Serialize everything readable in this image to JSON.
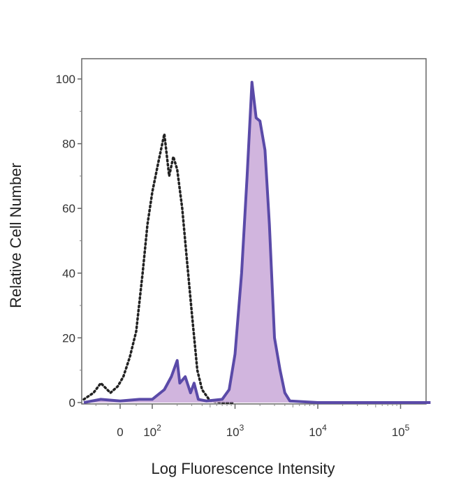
{
  "chart_data": {
    "type": "area",
    "xlabel": "Log Fluorescence Intensity",
    "ylabel": "Relative Cell Number",
    "x_scale": "biexponential",
    "ylim": [
      0,
      100
    ],
    "y_ticks": [
      {
        "value": 0,
        "label": "0"
      },
      {
        "value": 20,
        "label": "20"
      },
      {
        "value": 40,
        "label": "40"
      },
      {
        "value": 60,
        "label": "60"
      },
      {
        "value": 80,
        "label": "80"
      },
      {
        "value": 100,
        "label": "100"
      }
    ],
    "x_ticks": [
      {
        "value": 0,
        "label": "0",
        "exp": ""
      },
      {
        "value": 100,
        "label": "10",
        "exp": "2"
      },
      {
        "value": 1000,
        "label": "10",
        "exp": "3"
      },
      {
        "value": 10000,
        "label": "10",
        "exp": "4"
      },
      {
        "value": 100000,
        "label": "10",
        "exp": "5"
      }
    ],
    "grid": false,
    "legend": "none",
    "series": [
      {
        "style": "dotted-outline",
        "color": "#222222",
        "points": [
          [
            -150,
            1
          ],
          [
            -110,
            3
          ],
          [
            -80,
            6
          ],
          [
            -40,
            3
          ],
          [
            -10,
            5
          ],
          [
            10,
            8
          ],
          [
            30,
            14
          ],
          [
            50,
            22
          ],
          [
            70,
            40
          ],
          [
            85,
            55
          ],
          [
            100,
            65
          ],
          [
            120,
            75
          ],
          [
            140,
            83
          ],
          [
            160,
            70
          ],
          [
            180,
            76
          ],
          [
            200,
            72
          ],
          [
            230,
            60
          ],
          [
            260,
            45
          ],
          [
            300,
            28
          ],
          [
            350,
            10
          ],
          [
            400,
            4
          ],
          [
            500,
            0.5
          ],
          [
            700,
            0
          ],
          [
            1000,
            0
          ]
        ]
      },
      {
        "style": "filled",
        "color": "#5a4aa8",
        "fill": "#c9a8d8",
        "points": [
          [
            -150,
            0
          ],
          [
            -80,
            1
          ],
          [
            0,
            0.5
          ],
          [
            60,
            1
          ],
          [
            100,
            1
          ],
          [
            140,
            4
          ],
          [
            170,
            8
          ],
          [
            200,
            13
          ],
          [
            215,
            6
          ],
          [
            250,
            8
          ],
          [
            290,
            3
          ],
          [
            320,
            6
          ],
          [
            360,
            1
          ],
          [
            450,
            0.5
          ],
          [
            700,
            1
          ],
          [
            850,
            4
          ],
          [
            1000,
            15
          ],
          [
            1200,
            40
          ],
          [
            1400,
            70
          ],
          [
            1600,
            99
          ],
          [
            1800,
            88
          ],
          [
            2000,
            87
          ],
          [
            2300,
            78
          ],
          [
            2600,
            55
          ],
          [
            3000,
            20
          ],
          [
            3500,
            10
          ],
          [
            4000,
            3
          ],
          [
            4600,
            0.5
          ],
          [
            10000,
            0
          ],
          [
            100000,
            0
          ],
          [
            230000,
            0
          ]
        ]
      }
    ]
  },
  "colors": {
    "outline": "#555555",
    "dotted": "#222222",
    "histogram_line": "#5a4aa8",
    "histogram_fill": "#c9a8d8"
  }
}
